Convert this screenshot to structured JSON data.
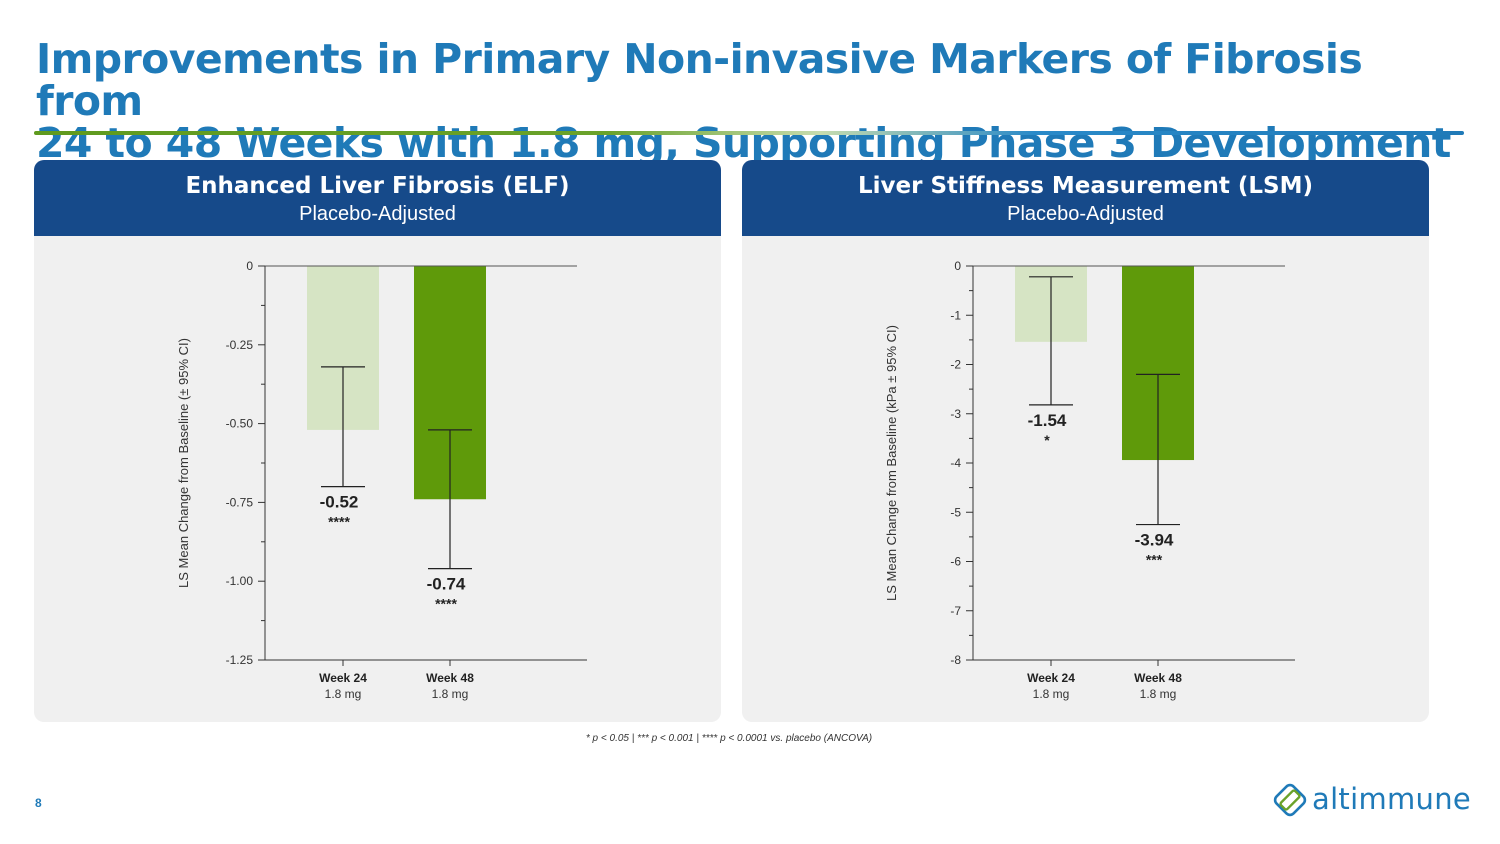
{
  "title_line1": "Improvements in Primary Non-invasive Markers of Fibrosis from",
  "title_line2": "24 to 48 Weeks with 1.8 mg, Supporting Phase 3 Development",
  "colors": {
    "title_blue": "#1f7ab8",
    "panel_header": "#164a8a",
    "week24_bar": "#d6e4c4",
    "week48_bar": "#5f9a0a"
  },
  "footnote": "* p < 0.05 | *** p < 0.001 | **** p < 0.0001 vs. placebo (ANCOVA)",
  "page_number": "8",
  "logo": {
    "icon": "diamond-logo-icon",
    "text": "altimmune"
  },
  "chart_data": [
    {
      "type": "bar",
      "title": "Enhanced Liver Fibrosis (ELF)",
      "subtitle": "Placebo-Adjusted",
      "ylabel": "LS Mean Change from Baseline (± 95% CI)",
      "ylim": [
        -1.25,
        0
      ],
      "yticks": [
        0,
        -0.25,
        -0.5,
        -0.75,
        -1.0,
        -1.25
      ],
      "ytick_labels": [
        "0",
        "-0.25",
        "-0.50",
        "-0.75",
        "-1.00",
        "-1.25"
      ],
      "minor_ticks": true,
      "categories": [
        {
          "label": "Week 24",
          "sublabel": "1.8 mg"
        },
        {
          "label": "Week 48",
          "sublabel": "1.8 mg"
        }
      ],
      "values": [
        -0.52,
        -0.74
      ],
      "ci_upper": [
        -0.32,
        -0.52
      ],
      "ci_lower": [
        -0.7,
        -0.96
      ],
      "value_labels": [
        "-0.52",
        "-0.74"
      ],
      "significance": [
        "****",
        "****"
      ]
    },
    {
      "type": "bar",
      "title": "Liver Stiffness Measurement (LSM)",
      "subtitle": "Placebo-Adjusted",
      "ylabel": "LS Mean Change from Baseline (kPa ± 95% CI)",
      "ylim": [
        -8,
        0
      ],
      "yticks": [
        0,
        -1,
        -2,
        -3,
        -4,
        -5,
        -6,
        -7,
        -8
      ],
      "ytick_labels": [
        "0",
        "-1",
        "-2",
        "-3",
        "-4",
        "-5",
        "-6",
        "-7",
        "-8"
      ],
      "minor_ticks": true,
      "categories": [
        {
          "label": "Week 24",
          "sublabel": "1.8 mg"
        },
        {
          "label": "Week 48",
          "sublabel": "1.8 mg"
        }
      ],
      "values": [
        -1.54,
        -3.94
      ],
      "ci_upper": [
        -0.22,
        -2.2
      ],
      "ci_lower": [
        -2.82,
        -5.25
      ],
      "value_labels": [
        "-1.54",
        "-3.94"
      ],
      "significance": [
        "*",
        "***"
      ]
    }
  ]
}
